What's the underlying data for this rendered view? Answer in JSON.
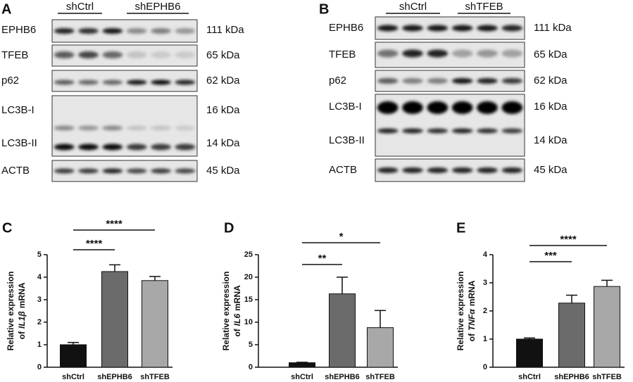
{
  "blots": [
    {
      "label": "A",
      "groups": [
        "shCtrl",
        "shEPHB6"
      ],
      "rows": [
        {
          "name": "EPHB6",
          "kda": "111 kDa"
        },
        {
          "name": "TFEB",
          "kda": "65 kDa"
        },
        {
          "name": "p62",
          "kda": "62 kDa"
        },
        {
          "name": "LC3B-I",
          "kda": "16 kDa"
        },
        {
          "name": "LC3B-II",
          "kda": "14 kDa"
        },
        {
          "name": "ACTB",
          "kda": "45 kDa"
        }
      ]
    },
    {
      "label": "B",
      "groups": [
        "shCtrl",
        "shTFEB"
      ],
      "rows": [
        {
          "name": "EPHB6",
          "kda": "111 kDa"
        },
        {
          "name": "TFEB",
          "kda": "65 kDa"
        },
        {
          "name": "p62",
          "kda": "62 kDa"
        },
        {
          "name": "LC3B-I",
          "kda": "16 kDa"
        },
        {
          "name": "LC3B-II",
          "kda": "14 kDa"
        },
        {
          "name": "ACTB",
          "kda": "45 kDa"
        }
      ]
    }
  ],
  "chart_data": [
    {
      "type": "bar",
      "panel": "C",
      "ylabel": {
        "line1": "Relative expression",
        "pre": "of",
        "gene": "IL1β",
        "post": "mRNA"
      },
      "categories": [
        "shCtrl",
        "shEPHB6",
        "shTFEB"
      ],
      "values": [
        1.0,
        4.25,
        3.85
      ],
      "errors": [
        0.1,
        0.3,
        0.18
      ],
      "colors": [
        "#111111",
        "#6b6b6b",
        "#a8a8a8"
      ],
      "ylim": [
        0,
        5
      ],
      "yticks": [
        0,
        1,
        2,
        3,
        4,
        5
      ],
      "annotations": [
        {
          "text": "****",
          "between": [
            "shCtrl",
            "shEPHB6"
          ]
        },
        {
          "text": "****",
          "between": [
            "shCtrl",
            "shTFEB"
          ]
        }
      ]
    },
    {
      "type": "bar",
      "panel": "D",
      "ylabel": {
        "line1": "Relative expression",
        "pre": "of",
        "gene": "IL6",
        "post": "mRNA"
      },
      "categories": [
        "shCtrl",
        "shEPHB6",
        "shTFEB"
      ],
      "values": [
        1.0,
        16.3,
        8.8
      ],
      "errors": [
        0.1,
        3.7,
        3.8
      ],
      "colors": [
        "#111111",
        "#6b6b6b",
        "#a8a8a8"
      ],
      "ylim": [
        0,
        25
      ],
      "yticks": [
        0,
        5,
        10,
        15,
        20,
        25
      ],
      "annotations": [
        {
          "text": "**",
          "between": [
            "shCtrl",
            "shEPHB6"
          ]
        },
        {
          "text": "*",
          "between": [
            "shCtrl",
            "shTFEB"
          ]
        }
      ]
    },
    {
      "type": "bar",
      "panel": "E",
      "ylabel": {
        "line1": "Relative expression",
        "pre": "of",
        "gene": "TNFα",
        "post": "mRNA"
      },
      "categories": [
        "shCtrl",
        "shEPHB6",
        "shTFEB"
      ],
      "values": [
        1.0,
        2.28,
        2.87
      ],
      "errors": [
        0.04,
        0.28,
        0.22
      ],
      "colors": [
        "#111111",
        "#6b6b6b",
        "#a8a8a8"
      ],
      "ylim": [
        0,
        4
      ],
      "yticks": [
        0,
        1,
        2,
        3,
        4
      ],
      "annotations": [
        {
          "text": "***",
          "between": [
            "shCtrl",
            "shEPHB6"
          ]
        },
        {
          "text": "****",
          "between": [
            "shCtrl",
            "shTFEB"
          ]
        }
      ]
    }
  ]
}
